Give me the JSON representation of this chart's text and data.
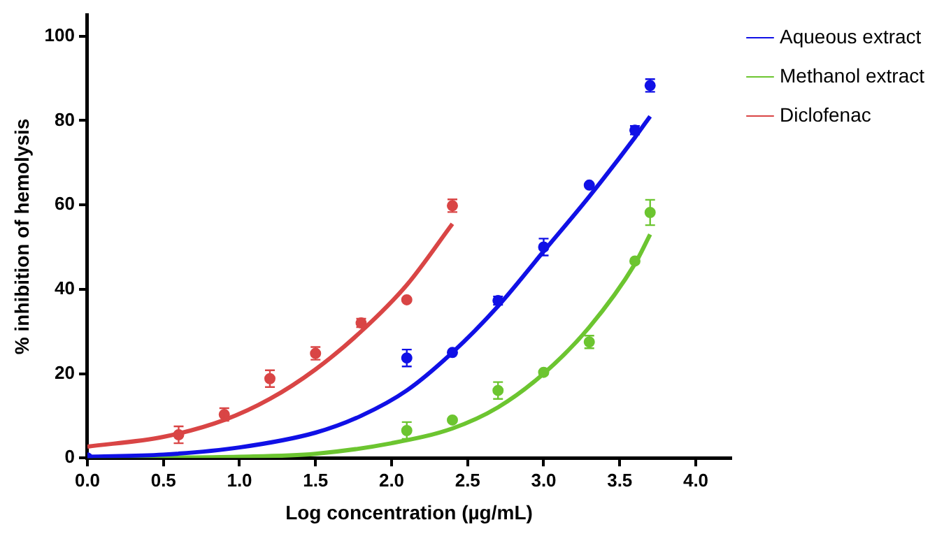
{
  "chart_data": {
    "type": "scatter",
    "xlabel": "Log concentration (µg/mL)",
    "ylabel": "% inhibition of hemolysis",
    "xlim": [
      0,
      4.23
    ],
    "xticks": [
      {
        "value": 0,
        "label": "0.0"
      },
      {
        "value": 0.5,
        "label": "0.5"
      },
      {
        "value": 1,
        "label": "1.0"
      },
      {
        "value": 1.5,
        "label": "1.5"
      },
      {
        "value": 2,
        "label": "2.0"
      },
      {
        "value": 2.5,
        "label": "2.5"
      },
      {
        "value": 3,
        "label": "3.0"
      },
      {
        "value": 3.5,
        "label": "3.5"
      },
      {
        "value": 4,
        "label": "4.0"
      }
    ],
    "ylim": [
      0,
      105
    ],
    "yticks": [
      0,
      20,
      40,
      60,
      80,
      100
    ],
    "grid": false,
    "legend": "top right",
    "series": [
      {
        "name": "Aqueous extract",
        "color": "#1010e6",
        "x": [
          0,
          2.1,
          2.4,
          2.7,
          3.0,
          3.3,
          3.6,
          3.7
        ],
        "values": [
          0,
          23.7,
          25,
          37.3,
          50,
          64.7,
          77.7,
          88.3
        ],
        "marker": "circle",
        "errors": [
          null,
          2,
          null,
          1,
          2,
          null,
          1,
          1.5
        ]
      },
      {
        "name": "Methanol extract",
        "color": "#6cc530",
        "x": [
          2.1,
          2.4,
          2.7,
          3.0,
          3.3,
          3.6,
          3.7
        ],
        "values": [
          6.5,
          9,
          16,
          20.3,
          27.5,
          46.7,
          58.2
        ],
        "marker": "circle",
        "errors": [
          2,
          null,
          2,
          null,
          1.5,
          null,
          3
        ]
      },
      {
        "name": "Diclofenac",
        "color": "#d94545",
        "x": [
          0.6,
          0.9,
          1.2,
          1.5,
          1.8,
          2.1,
          2.4
        ],
        "values": [
          5.5,
          10.3,
          18.8,
          24.8,
          32,
          37.5,
          59.8
        ],
        "marker": "circle",
        "errors": [
          2,
          1.5,
          2,
          1.5,
          1,
          null,
          1.5
        ]
      },
      {
        "type": "line",
        "color": "#1010e6",
        "x": [
          0,
          0.5,
          1.0,
          1.5,
          1.8,
          2.1,
          2.4,
          2.7,
          3.0,
          3.3,
          3.6,
          3.7
        ],
        "values": [
          0.3,
          0.8,
          2.5,
          6,
          10,
          16,
          25,
          36,
          49,
          62,
          76,
          81
        ],
        "marker": "none"
      },
      {
        "type": "line",
        "color": "#6cc530",
        "x": [
          0,
          1.0,
          1.5,
          2.0,
          2.4,
          2.7,
          3.0,
          3.3,
          3.6,
          3.7
        ],
        "values": [
          0,
          0.3,
          1,
          3.5,
          7,
          12,
          20,
          31,
          46,
          53
        ],
        "marker": "none"
      },
      {
        "type": "line",
        "color": "#d94545",
        "x": [
          0,
          0.5,
          0.9,
          1.2,
          1.5,
          1.8,
          2.1,
          2.4
        ],
        "values": [
          2.7,
          5,
          9,
          14,
          21,
          30,
          41,
          55.5
        ],
        "marker": "none"
      }
    ]
  }
}
